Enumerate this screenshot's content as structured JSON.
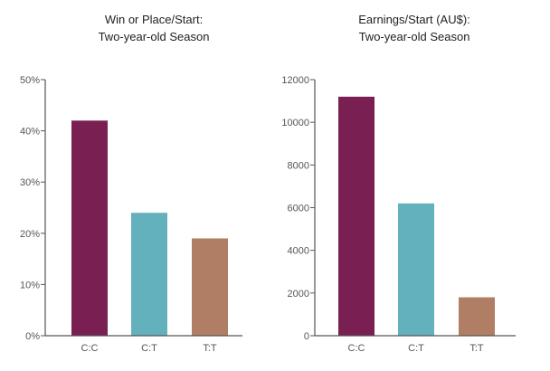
{
  "chart_data": [
    {
      "type": "bar",
      "title_lines": [
        "Win or Place/Start:",
        "Two-year-old Season"
      ],
      "categories": [
        "C:C",
        "C:T",
        "T:T"
      ],
      "values": [
        42,
        24,
        19
      ],
      "unit": "%",
      "ylim": [
        0,
        50
      ],
      "yticks": [
        0,
        10,
        20,
        30,
        40,
        50
      ],
      "ytick_labels": [
        "0%",
        "10%",
        "20%",
        "30%",
        "40%",
        "50%"
      ],
      "colors": [
        "#7a1f52",
        "#63b1bc",
        "#b07e64"
      ],
      "grid": false
    },
    {
      "type": "bar",
      "title_lines": [
        "Earnings/Start (AU$):",
        "Two-year-old Season"
      ],
      "categories": [
        "C:C",
        "C:T",
        "T:T"
      ],
      "values": [
        11200,
        6200,
        1800
      ],
      "ylim": [
        0,
        12000
      ],
      "yticks": [
        0,
        2000,
        4000,
        6000,
        8000,
        10000,
        12000
      ],
      "ytick_labels": [
        "0",
        "2000",
        "4000",
        "6000",
        "8000",
        "10000",
        "12000"
      ],
      "colors": [
        "#7a1f52",
        "#63b1bc",
        "#b07e64"
      ],
      "grid": false
    }
  ]
}
